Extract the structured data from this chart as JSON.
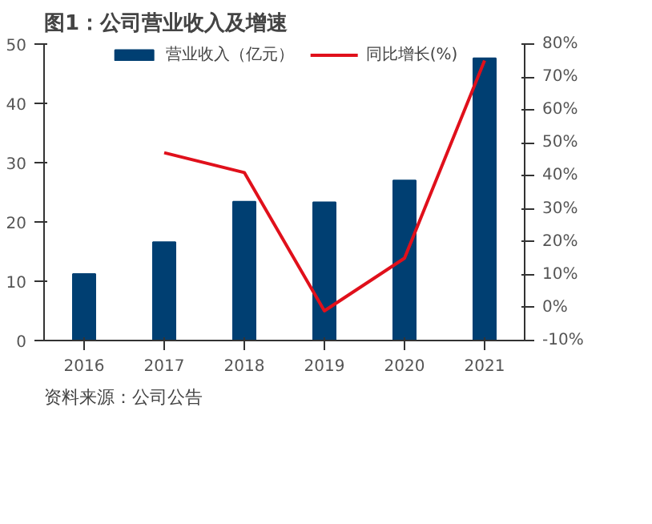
{
  "chart_data": {
    "type": "bar",
    "title": "图1：公司营业收入及增速",
    "categories": [
      "2016",
      "2017",
      "2018",
      "2019",
      "2020",
      "2021"
    ],
    "series": [
      {
        "name": "营业收入（亿元）",
        "color": "#003f72",
        "values": [
          11.2,
          16.6,
          23.4,
          23.3,
          27.0,
          47.6
        ]
      },
      {
        "name": "同比增长(%)",
        "type": "line",
        "axis": "y2",
        "color": "#e0101b",
        "values": [
          null,
          47,
          41,
          -1,
          15,
          75
        ]
      }
    ],
    "ylim": [
      0,
      50
    ],
    "yticks": [
      0,
      10,
      20,
      30,
      40,
      50
    ],
    "y2lim": [
      -10,
      80
    ],
    "y2ticks": [
      {
        "value": -10,
        "label": "-10%"
      },
      {
        "value": 0,
        "label": "0%"
      },
      {
        "value": 10,
        "label": "10%"
      },
      {
        "value": 20,
        "label": "20%"
      },
      {
        "value": 30,
        "label": "30%"
      },
      {
        "value": 40,
        "label": "40%"
      },
      {
        "value": 50,
        "label": "50%"
      },
      {
        "value": 60,
        "label": "60%"
      },
      {
        "value": 70,
        "label": "70%"
      },
      {
        "value": 80,
        "label": "80%"
      }
    ],
    "legend": "top",
    "grid": false,
    "annotations": [
      "资料来源：公司公告"
    ]
  }
}
